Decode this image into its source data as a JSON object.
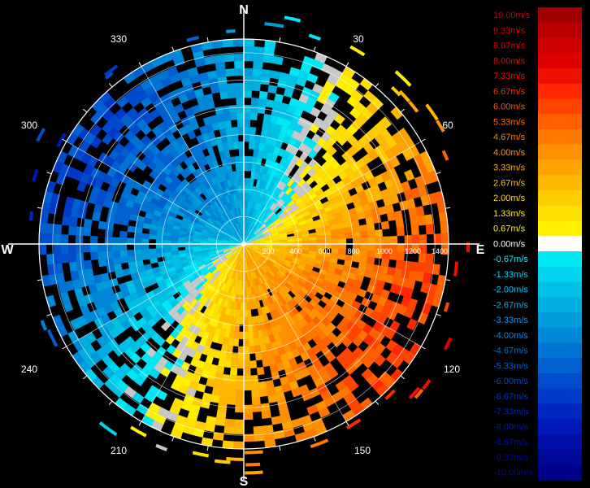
{
  "chart_data": {
    "type": "heatmap",
    "subtype": "polar radial-velocity sector plot",
    "title": "",
    "cardinal_labels": [
      "N",
      "E",
      "S",
      "W"
    ],
    "bearing_labels": [
      "30",
      "60",
      "120",
      "150",
      "210",
      "240",
      "300",
      "330"
    ],
    "range_labels": [
      "200",
      "400",
      "600",
      "800",
      "1000",
      "1200",
      "1400"
    ],
    "range_max": 1500,
    "ring_count": 7,
    "background": "#000000",
    "grid_color": "#ffffff",
    "legend": {
      "placement": "right",
      "labels": [
        "10.00m/s",
        "9.33m/s",
        "8.67m/s",
        "8.00m/s",
        "7.33m/s",
        "6.67m/s",
        "6.00m/s",
        "5.33m/s",
        "4.67m/s",
        "4.00m/s",
        "3.33m/s",
        "2.67m/s",
        "2.00m/s",
        "1.33m/s",
        "0.67m/s",
        "0.00m/s",
        "-0.67m/s",
        "-1.33m/s",
        "-2.00m/s",
        "-2.67m/s",
        "-3.33m/s",
        "-4.00m/s",
        "-4.67m/s",
        "-5.33m/s",
        "-6.00m/s",
        "-6.67m/s",
        "-7.33m/s",
        "-8.00m/s",
        "-8.67m/s",
        "-9.33m/s",
        "-10.00m/s"
      ],
      "colors": [
        "#a00000",
        "#b80000",
        "#cc0000",
        "#dd0000",
        "#ee1000",
        "#ff2800",
        "#ff4400",
        "#ff6000",
        "#ff7800",
        "#ff9000",
        "#ffa400",
        "#ffb800",
        "#ffcc00",
        "#ffe000",
        "#fff000",
        "#ffffff",
        "#00e8f4",
        "#00d4ee",
        "#00c0e6",
        "#00aee0",
        "#009cdc",
        "#0088d8",
        "#0074d4",
        "#0060d0",
        "#004ccc",
        "#0038c8",
        "#0028c0",
        "#0018b8",
        "#0010a8",
        "#000898",
        "#000088"
      ],
      "label_colors": [
        "#c00000",
        "#d00000",
        "#e00000",
        "#f00000",
        "#ff1000",
        "#ff3000",
        "#ff5000",
        "#ff6a00",
        "#ff8000",
        "#ff9800",
        "#ffb000",
        "#ffc400",
        "#ffd800",
        "#ffec00",
        "#fff800",
        "#ffffff",
        "#00f0ff",
        "#00d8ff",
        "#00c4f8",
        "#00b0f0",
        "#009ce8",
        "#0088e0",
        "#0070d8",
        "#005cd0",
        "#0048c8",
        "#0034c0",
        "#0024b8",
        "#0018b0",
        "#0010a8",
        "#0008a0",
        "#000898"
      ]
    },
    "velocity_model": {
      "description": "Radial wind velocity: positive (toward orange/red) east and south-east, negative (blue) west and north-west, zero line bending through centre",
      "max_abs_velocity": 10,
      "primary_positive_bearing": 115,
      "white_boundary_color": "#c8c8c8"
    }
  }
}
